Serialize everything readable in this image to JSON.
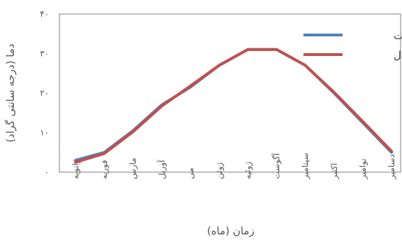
{
  "chart_data": {
    "type": "line",
    "title": "",
    "xlabel": "زمان (ماه)",
    "ylabel": "دما (درجه سانتی گراد)",
    "ylim": [
      0,
      40
    ],
    "y_ticks": [
      "۰",
      "۱۰",
      "۲۰",
      "۳۰",
      "۴۰"
    ],
    "categories": [
      "ژانویه",
      "فوریه",
      "مارس",
      "آوریل",
      "می",
      "ژوئن",
      "ژوئیه",
      "آگوست",
      "سپتامبر",
      "اکتبر",
      "نوامبر",
      "دسامبر"
    ],
    "series": [
      {
        "name": "مشاهدات",
        "color": "#4f81bd",
        "values": [
          3,
          5,
          10.5,
          17,
          21.5,
          27,
          31,
          31,
          27,
          20,
          12.5,
          5
        ]
      },
      {
        "name": "مدل",
        "color": "#c0504d",
        "values": [
          2.5,
          4.7,
          10.2,
          16.7,
          21.8,
          27,
          31,
          31,
          27,
          20.2,
          12.8,
          5.3
        ]
      }
    ],
    "legend_position": "top-right",
    "grid": false
  }
}
